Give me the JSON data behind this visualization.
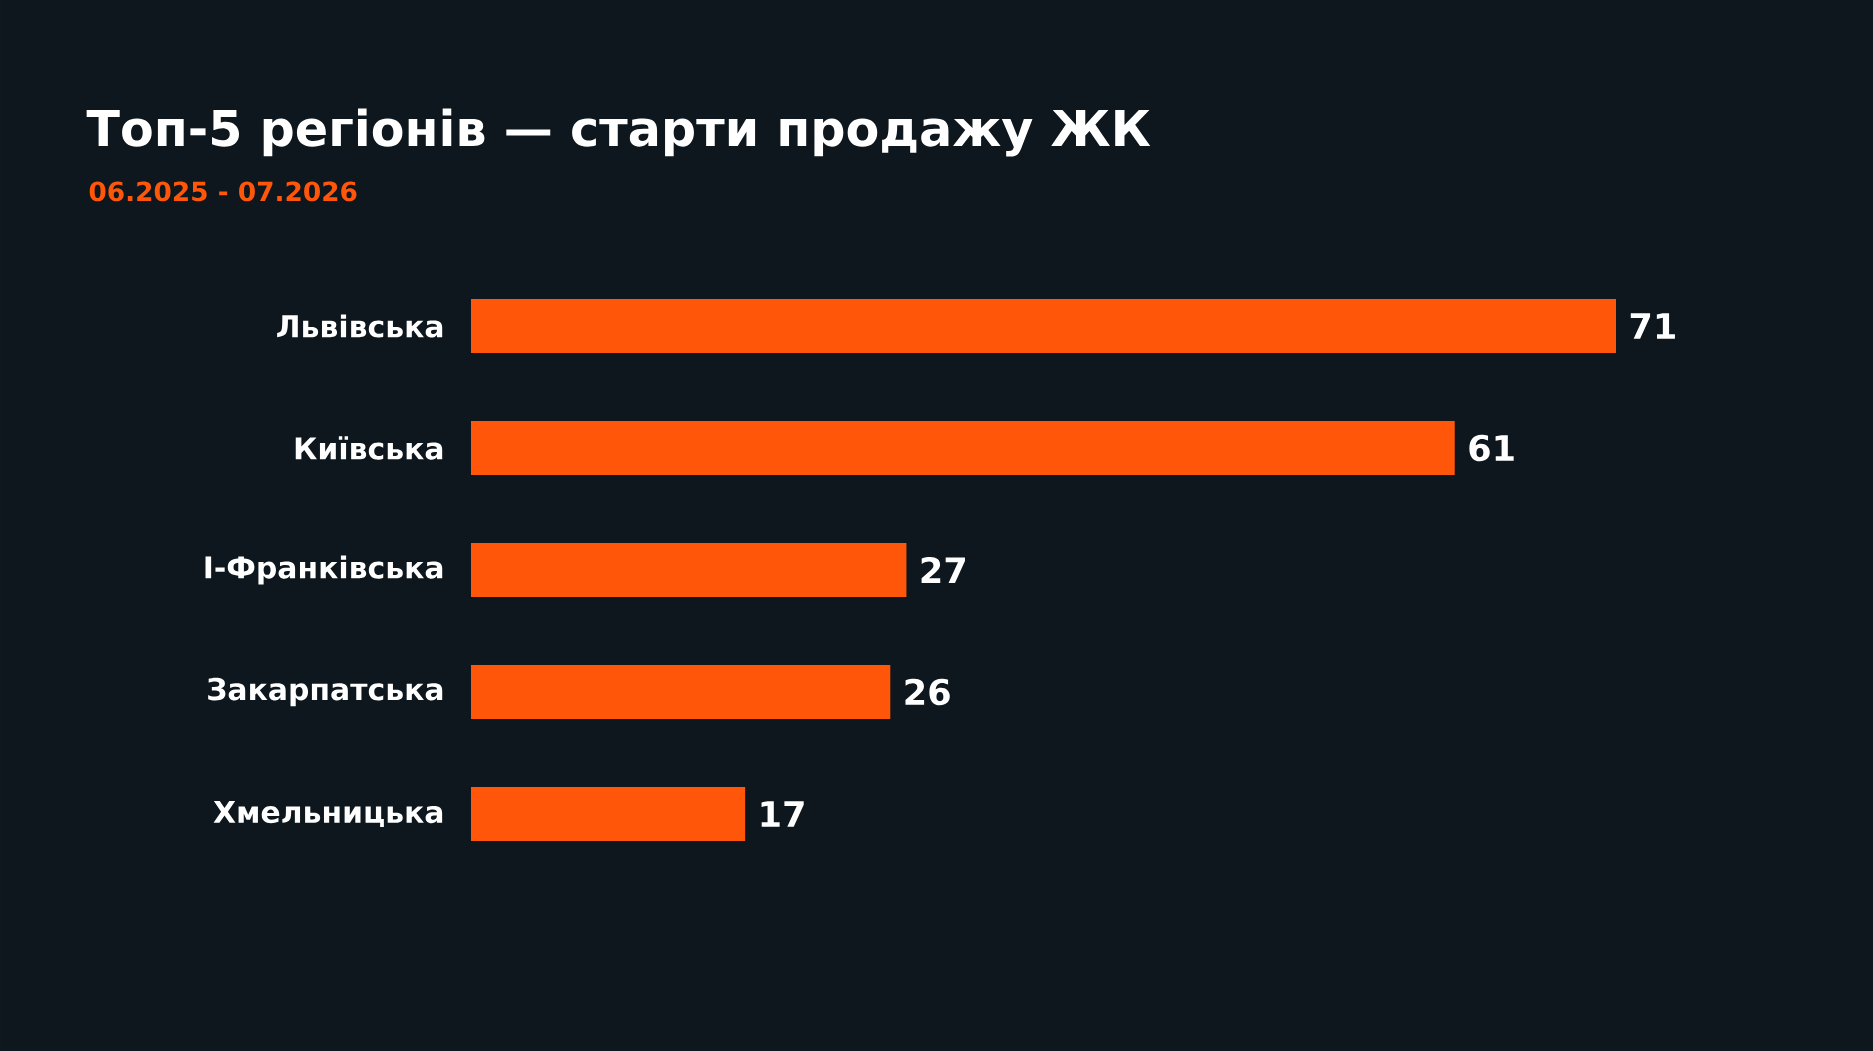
{
  "chart_data": {
    "type": "bar",
    "orientation": "horizontal",
    "title": "Топ-5 регіонів — старти продажу ЖК",
    "subtitle": "06.2025 - 07.2026",
    "categories": [
      "Львівська",
      "Київська",
      "І-Франківська",
      "Закарпатська",
      "Хмельницька"
    ],
    "values": [
      71,
      61,
      27,
      26,
      17
    ],
    "color": "#ff560a",
    "data_labels": true
  }
}
